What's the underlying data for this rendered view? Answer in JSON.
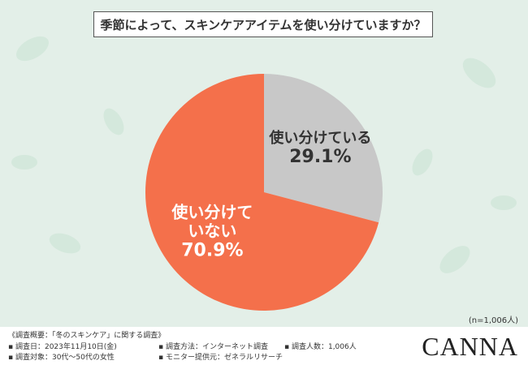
{
  "chart_data": {
    "type": "pie",
    "title": "季節によって、スキンケアアイテムを使い分けていますか？",
    "categories": [
      "使い分けている",
      "使い分けていない"
    ],
    "values": [
      29.1,
      70.9
    ],
    "value_labels": [
      "29.1%",
      "70.9%"
    ],
    "colors": [
      "#c8c8c8",
      "#f4704b"
    ],
    "note": "(n=1,006人)"
  },
  "footer": {
    "survey_title": "《調査概要：「冬のスキンケア」に関する調査》",
    "items": [
      "調査日：2023年11月10日(金)",
      "調査対象：30代〜50代の女性",
      "調査方法：インターネット調査",
      "モニター提供元：ゼネラルリサーチ",
      "調査人数：1,006人"
    ],
    "logo": "CANNA"
  }
}
